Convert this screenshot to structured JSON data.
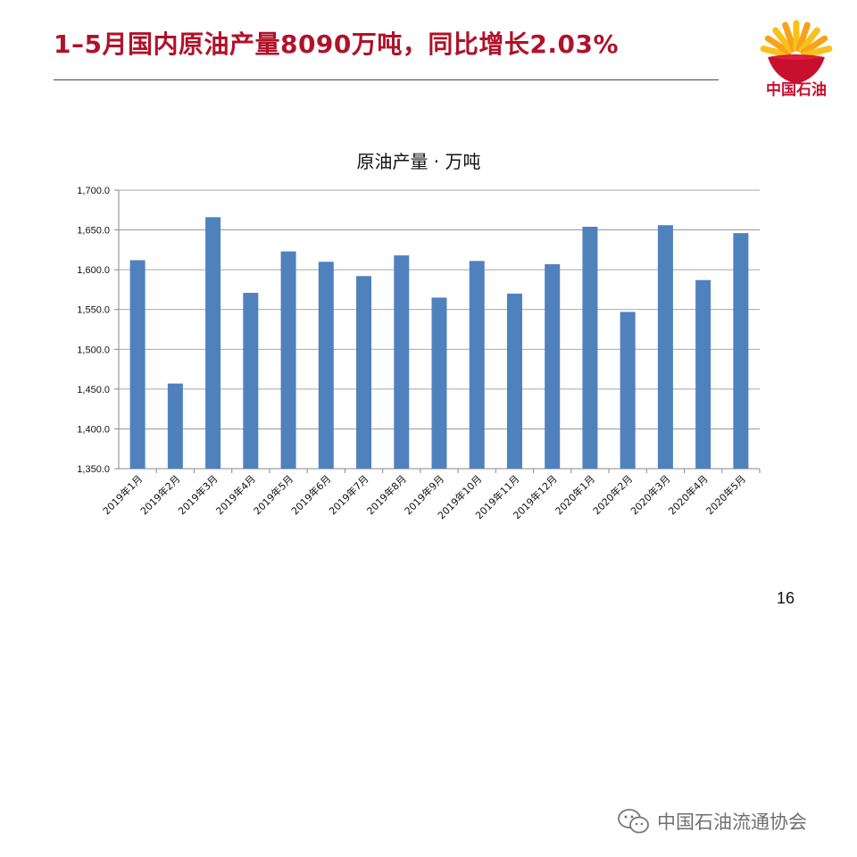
{
  "slide": {
    "title": "1–5月国内原油产量8090万吨，同比增长2.03%",
    "page_number": "16",
    "logo_text": "中国石油",
    "watermark": "中国石油流通协会"
  },
  "colors": {
    "title": "#b0122a",
    "bar": "#4f81bd",
    "logo_red": "#c8102e",
    "logo_yellow": "#f7c11a"
  },
  "icons": {
    "logo": "petrochina-sun-logo-icon",
    "watermark": "wechat-icon"
  },
  "chart_data": {
    "type": "bar",
    "title": "原油产量 · 万吨",
    "xlabel": "",
    "ylabel": "",
    "ylim": [
      1350,
      1700
    ],
    "yticks": [
      1350,
      1400,
      1450,
      1500,
      1550,
      1600,
      1650,
      1700
    ],
    "ytick_labels": [
      "1,350.0",
      "1,400.0",
      "1,450.0",
      "1,500.0",
      "1,550.0",
      "1,600.0",
      "1,650.0",
      "1,700.0"
    ],
    "grid": true,
    "legend": "none",
    "categories": [
      "2019年1月",
      "2019年2月",
      "2019年3月",
      "2019年4月",
      "2019年5月",
      "2019年6月",
      "2019年7月",
      "2019年8月",
      "2019年9月",
      "2019年10月",
      "2019年11月",
      "2019年12月",
      "2020年1月",
      "2020年2月",
      "2020年3月",
      "2020年4月",
      "2020年5月"
    ],
    "values": [
      1612,
      1457,
      1666,
      1571,
      1623,
      1610,
      1592,
      1618,
      1565,
      1611,
      1570,
      1607,
      1654,
      1547,
      1656,
      1587,
      1646
    ]
  }
}
